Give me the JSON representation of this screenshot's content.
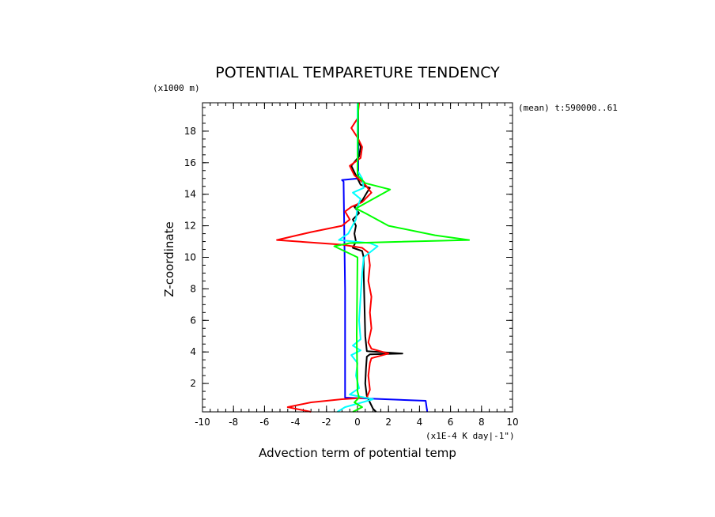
{
  "chart_data": {
    "type": "line",
    "title": "POTENTIAL TEMPARETURE TENDENCY",
    "ylabel": "Z-coordinate",
    "yunit": "(x1000 m)",
    "xlabel": "Advection term of potential temp",
    "xunit": "(x1E-4 K day|-1\")",
    "annotation": "(mean) t:590000..61",
    "xlim": [
      -10,
      10
    ],
    "ylim": [
      0.2,
      19.8
    ],
    "xticks": [
      -10,
      -8,
      -6,
      -4,
      -2,
      0,
      2,
      4,
      6,
      8,
      10
    ],
    "xtick_labels": [
      "-10",
      "-8",
      "-6",
      "-4",
      "-2",
      "0",
      "2",
      "4",
      "6",
      "8",
      "10"
    ],
    "yticks": [
      2,
      4,
      6,
      8,
      10,
      12,
      14,
      16,
      18
    ],
    "ytick_labels": [
      "2",
      "4",
      "6",
      "8",
      "10",
      "12",
      "14",
      "16",
      "18"
    ],
    "grid": false,
    "series": [
      {
        "color": "#0000ff",
        "points": [
          [
            4.5,
            0.2
          ],
          [
            4.4,
            0.9
          ],
          [
            -0.8,
            1.1
          ],
          [
            -0.8,
            8.0
          ],
          [
            -0.9,
            14.8
          ],
          [
            -1.0,
            14.9
          ],
          [
            0.05,
            15.0
          ],
          [
            0.05,
            19.8
          ]
        ]
      },
      {
        "color": "#000000",
        "points": [
          [
            1.2,
            0.2
          ],
          [
            1.0,
            0.4
          ],
          [
            0.8,
            0.8
          ],
          [
            0.6,
            1.2
          ],
          [
            0.5,
            2.0
          ],
          [
            0.55,
            3.0
          ],
          [
            0.6,
            3.7
          ],
          [
            0.8,
            3.85
          ],
          [
            2.9,
            3.9
          ],
          [
            0.6,
            4.05
          ],
          [
            0.5,
            5.0
          ],
          [
            0.45,
            7.0
          ],
          [
            0.4,
            9.0
          ],
          [
            0.4,
            10.0
          ],
          [
            0.3,
            10.4
          ],
          [
            -0.3,
            10.6
          ],
          [
            -0.1,
            11.0
          ],
          [
            -0.2,
            11.5
          ],
          [
            -0.1,
            12.0
          ],
          [
            -0.3,
            12.4
          ],
          [
            0.1,
            12.8
          ],
          [
            -0.2,
            13.2
          ],
          [
            0.3,
            13.6
          ],
          [
            0.6,
            14.1
          ],
          [
            0.8,
            14.4
          ],
          [
            0.2,
            14.6
          ],
          [
            -0.1,
            15.2
          ],
          [
            -0.4,
            15.8
          ],
          [
            0.1,
            16.4
          ],
          [
            0.2,
            17.0
          ],
          [
            0.05,
            17.5
          ],
          [
            0.0,
            18.5
          ],
          [
            0.0,
            19.8
          ]
        ]
      },
      {
        "color": "#ff0000",
        "points": [
          [
            -3.0,
            0.2
          ],
          [
            -4.5,
            0.5
          ],
          [
            -3.0,
            0.8
          ],
          [
            -1.0,
            1.0
          ],
          [
            0.6,
            1.1
          ],
          [
            0.8,
            1.6
          ],
          [
            0.7,
            2.5
          ],
          [
            0.8,
            3.3
          ],
          [
            0.9,
            3.6
          ],
          [
            2.0,
            3.9
          ],
          [
            0.9,
            4.2
          ],
          [
            0.7,
            4.6
          ],
          [
            0.9,
            5.5
          ],
          [
            0.8,
            6.5
          ],
          [
            0.9,
            7.5
          ],
          [
            0.7,
            8.5
          ],
          [
            0.8,
            9.5
          ],
          [
            0.7,
            10.3
          ],
          [
            0.3,
            10.6
          ],
          [
            -1.0,
            10.8
          ],
          [
            -5.2,
            11.1
          ],
          [
            -3.0,
            11.6
          ],
          [
            -1.0,
            12.0
          ],
          [
            -0.5,
            12.4
          ],
          [
            -0.8,
            12.9
          ],
          [
            -0.4,
            13.2
          ],
          [
            0.3,
            13.5
          ],
          [
            0.9,
            14.1
          ],
          [
            0.5,
            14.6
          ],
          [
            -0.2,
            15.2
          ],
          [
            -0.5,
            15.8
          ],
          [
            0.2,
            16.3
          ],
          [
            0.3,
            17.0
          ],
          [
            0.0,
            17.6
          ],
          [
            -0.4,
            18.2
          ],
          [
            0.0,
            18.8
          ],
          [
            0.1,
            19.8
          ]
        ]
      },
      {
        "color": "#00ffff",
        "points": [
          [
            -1.3,
            0.2
          ],
          [
            -0.8,
            0.5
          ],
          [
            0.3,
            0.8
          ],
          [
            1.0,
            1.0
          ],
          [
            -0.5,
            1.3
          ],
          [
            0.1,
            1.7
          ],
          [
            -0.1,
            2.5
          ],
          [
            0.0,
            3.3
          ],
          [
            -0.4,
            3.8
          ],
          [
            0.2,
            4.1
          ],
          [
            -0.3,
            4.4
          ],
          [
            0.2,
            4.8
          ],
          [
            0.1,
            6.0
          ],
          [
            0.2,
            7.5
          ],
          [
            0.3,
            9.0
          ],
          [
            0.4,
            10.0
          ],
          [
            1.3,
            10.7
          ],
          [
            0.8,
            10.9
          ],
          [
            -1.2,
            11.1
          ],
          [
            -0.6,
            11.5
          ],
          [
            -0.1,
            12.4
          ],
          [
            0.0,
            13.2
          ],
          [
            0.2,
            13.7
          ],
          [
            -0.3,
            14.1
          ],
          [
            0.4,
            14.4
          ],
          [
            0.3,
            15.0
          ],
          [
            0.0,
            15.5
          ],
          [
            0.0,
            19.8
          ]
        ]
      },
      {
        "color": "#00ff00",
        "points": [
          [
            -0.3,
            0.2
          ],
          [
            0.3,
            0.5
          ],
          [
            -0.2,
            0.8
          ],
          [
            0.1,
            1.1
          ],
          [
            0.0,
            1.5
          ],
          [
            -0.05,
            5.0
          ],
          [
            0.0,
            10.0
          ],
          [
            -1.5,
            10.7
          ],
          [
            -0.5,
            10.9
          ],
          [
            7.2,
            11.1
          ],
          [
            5.0,
            11.4
          ],
          [
            2.0,
            12.0
          ],
          [
            0.5,
            12.8
          ],
          [
            -0.1,
            13.1
          ],
          [
            2.1,
            14.3
          ],
          [
            0.5,
            14.7
          ],
          [
            0.0,
            15.2
          ],
          [
            0.05,
            19.8
          ]
        ]
      }
    ]
  }
}
